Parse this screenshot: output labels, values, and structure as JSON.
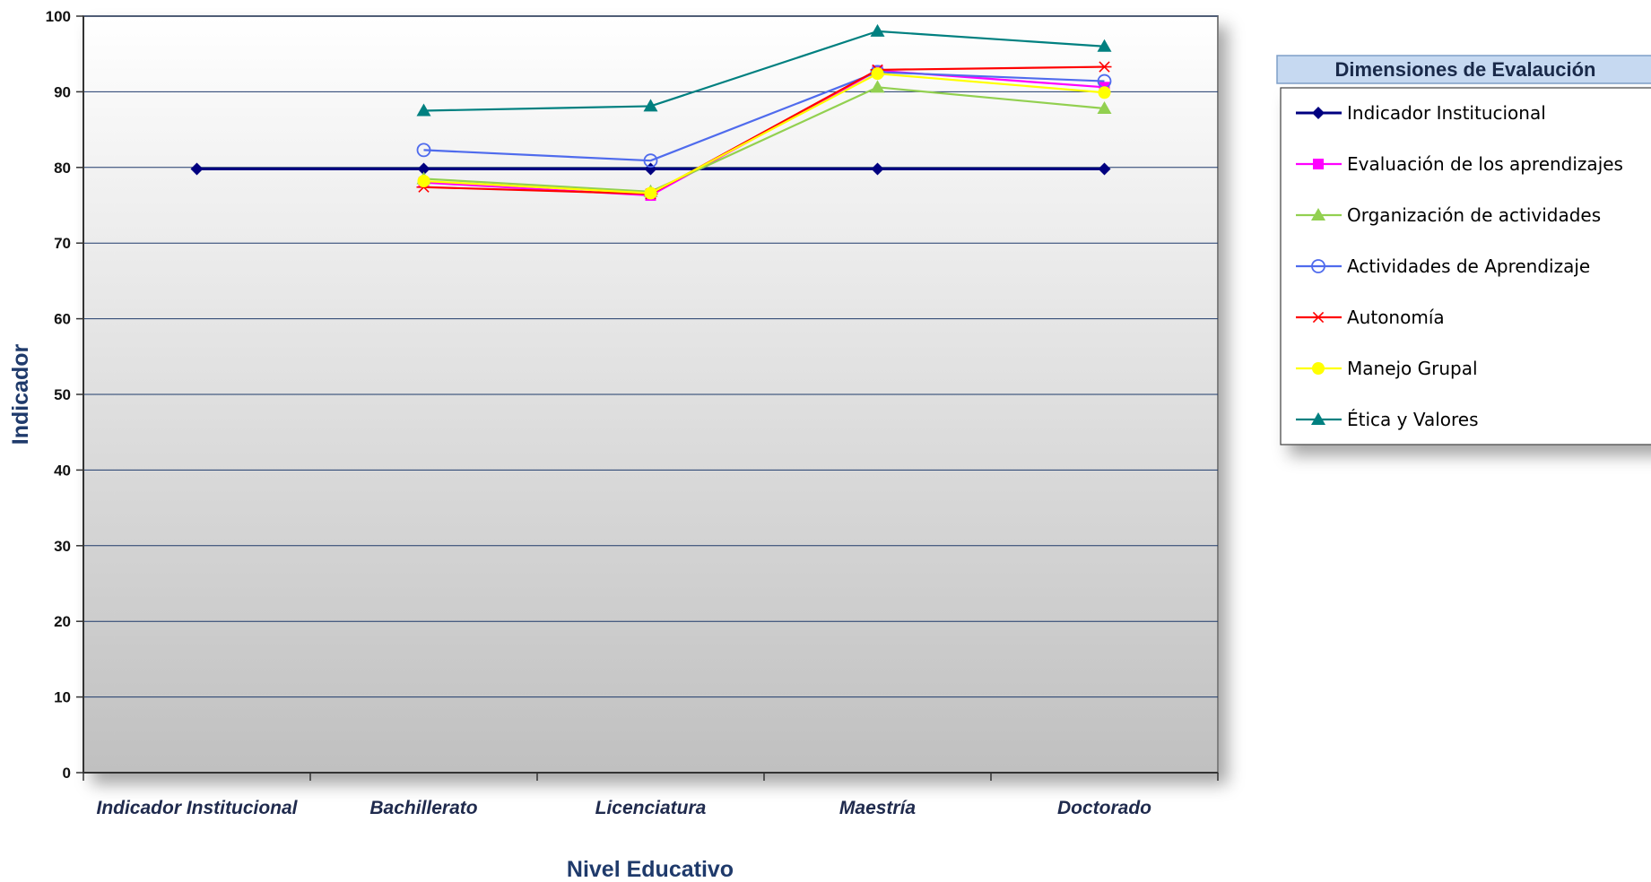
{
  "chart_data": {
    "type": "line",
    "xlabel": "Nivel Educativo",
    "ylabel": "Indicador",
    "ylim": [
      0,
      100
    ],
    "yticks": [
      0,
      10,
      20,
      30,
      40,
      50,
      60,
      70,
      80,
      90,
      100
    ],
    "categories": [
      "Indicador Institucional",
      "Bachillerato",
      "Licenciatura",
      "Maestría",
      "Doctorado"
    ],
    "grid": "horizontal",
    "legend_title": "Dimensiones de Evalaución",
    "legend_position": "right",
    "series": [
      {
        "name": "Indicador Institucional",
        "color": "#000080",
        "marker": "diamond",
        "values": [
          79.8,
          79.8,
          79.8,
          79.8,
          79.8
        ]
      },
      {
        "name": "Evaluación de los aprendizajes",
        "color": "#ff00ff",
        "marker": "square",
        "values": [
          null,
          78.0,
          76.3,
          92.8,
          90.6
        ]
      },
      {
        "name": "Organización de actividades",
        "color": "#92d050",
        "marker": "triangle",
        "values": [
          null,
          78.5,
          76.8,
          90.6,
          87.8
        ]
      },
      {
        "name": "Actividades de Aprendizaje",
        "color": "#4f6bed",
        "marker": "circle-open",
        "values": [
          null,
          82.3,
          80.9,
          92.6,
          91.4
        ]
      },
      {
        "name": "Autonomía",
        "color": "#ff0000",
        "marker": "star",
        "values": [
          null,
          77.4,
          76.5,
          92.9,
          93.3
        ]
      },
      {
        "name": "Manejo Grupal",
        "color": "#ffff00",
        "marker": "circle",
        "values": [
          null,
          78.2,
          76.6,
          92.4,
          89.9
        ]
      },
      {
        "name": "Ética y Valores",
        "color": "#008080",
        "marker": "triangle",
        "values": [
          null,
          87.5,
          88.1,
          98.0,
          96.0
        ]
      }
    ]
  }
}
